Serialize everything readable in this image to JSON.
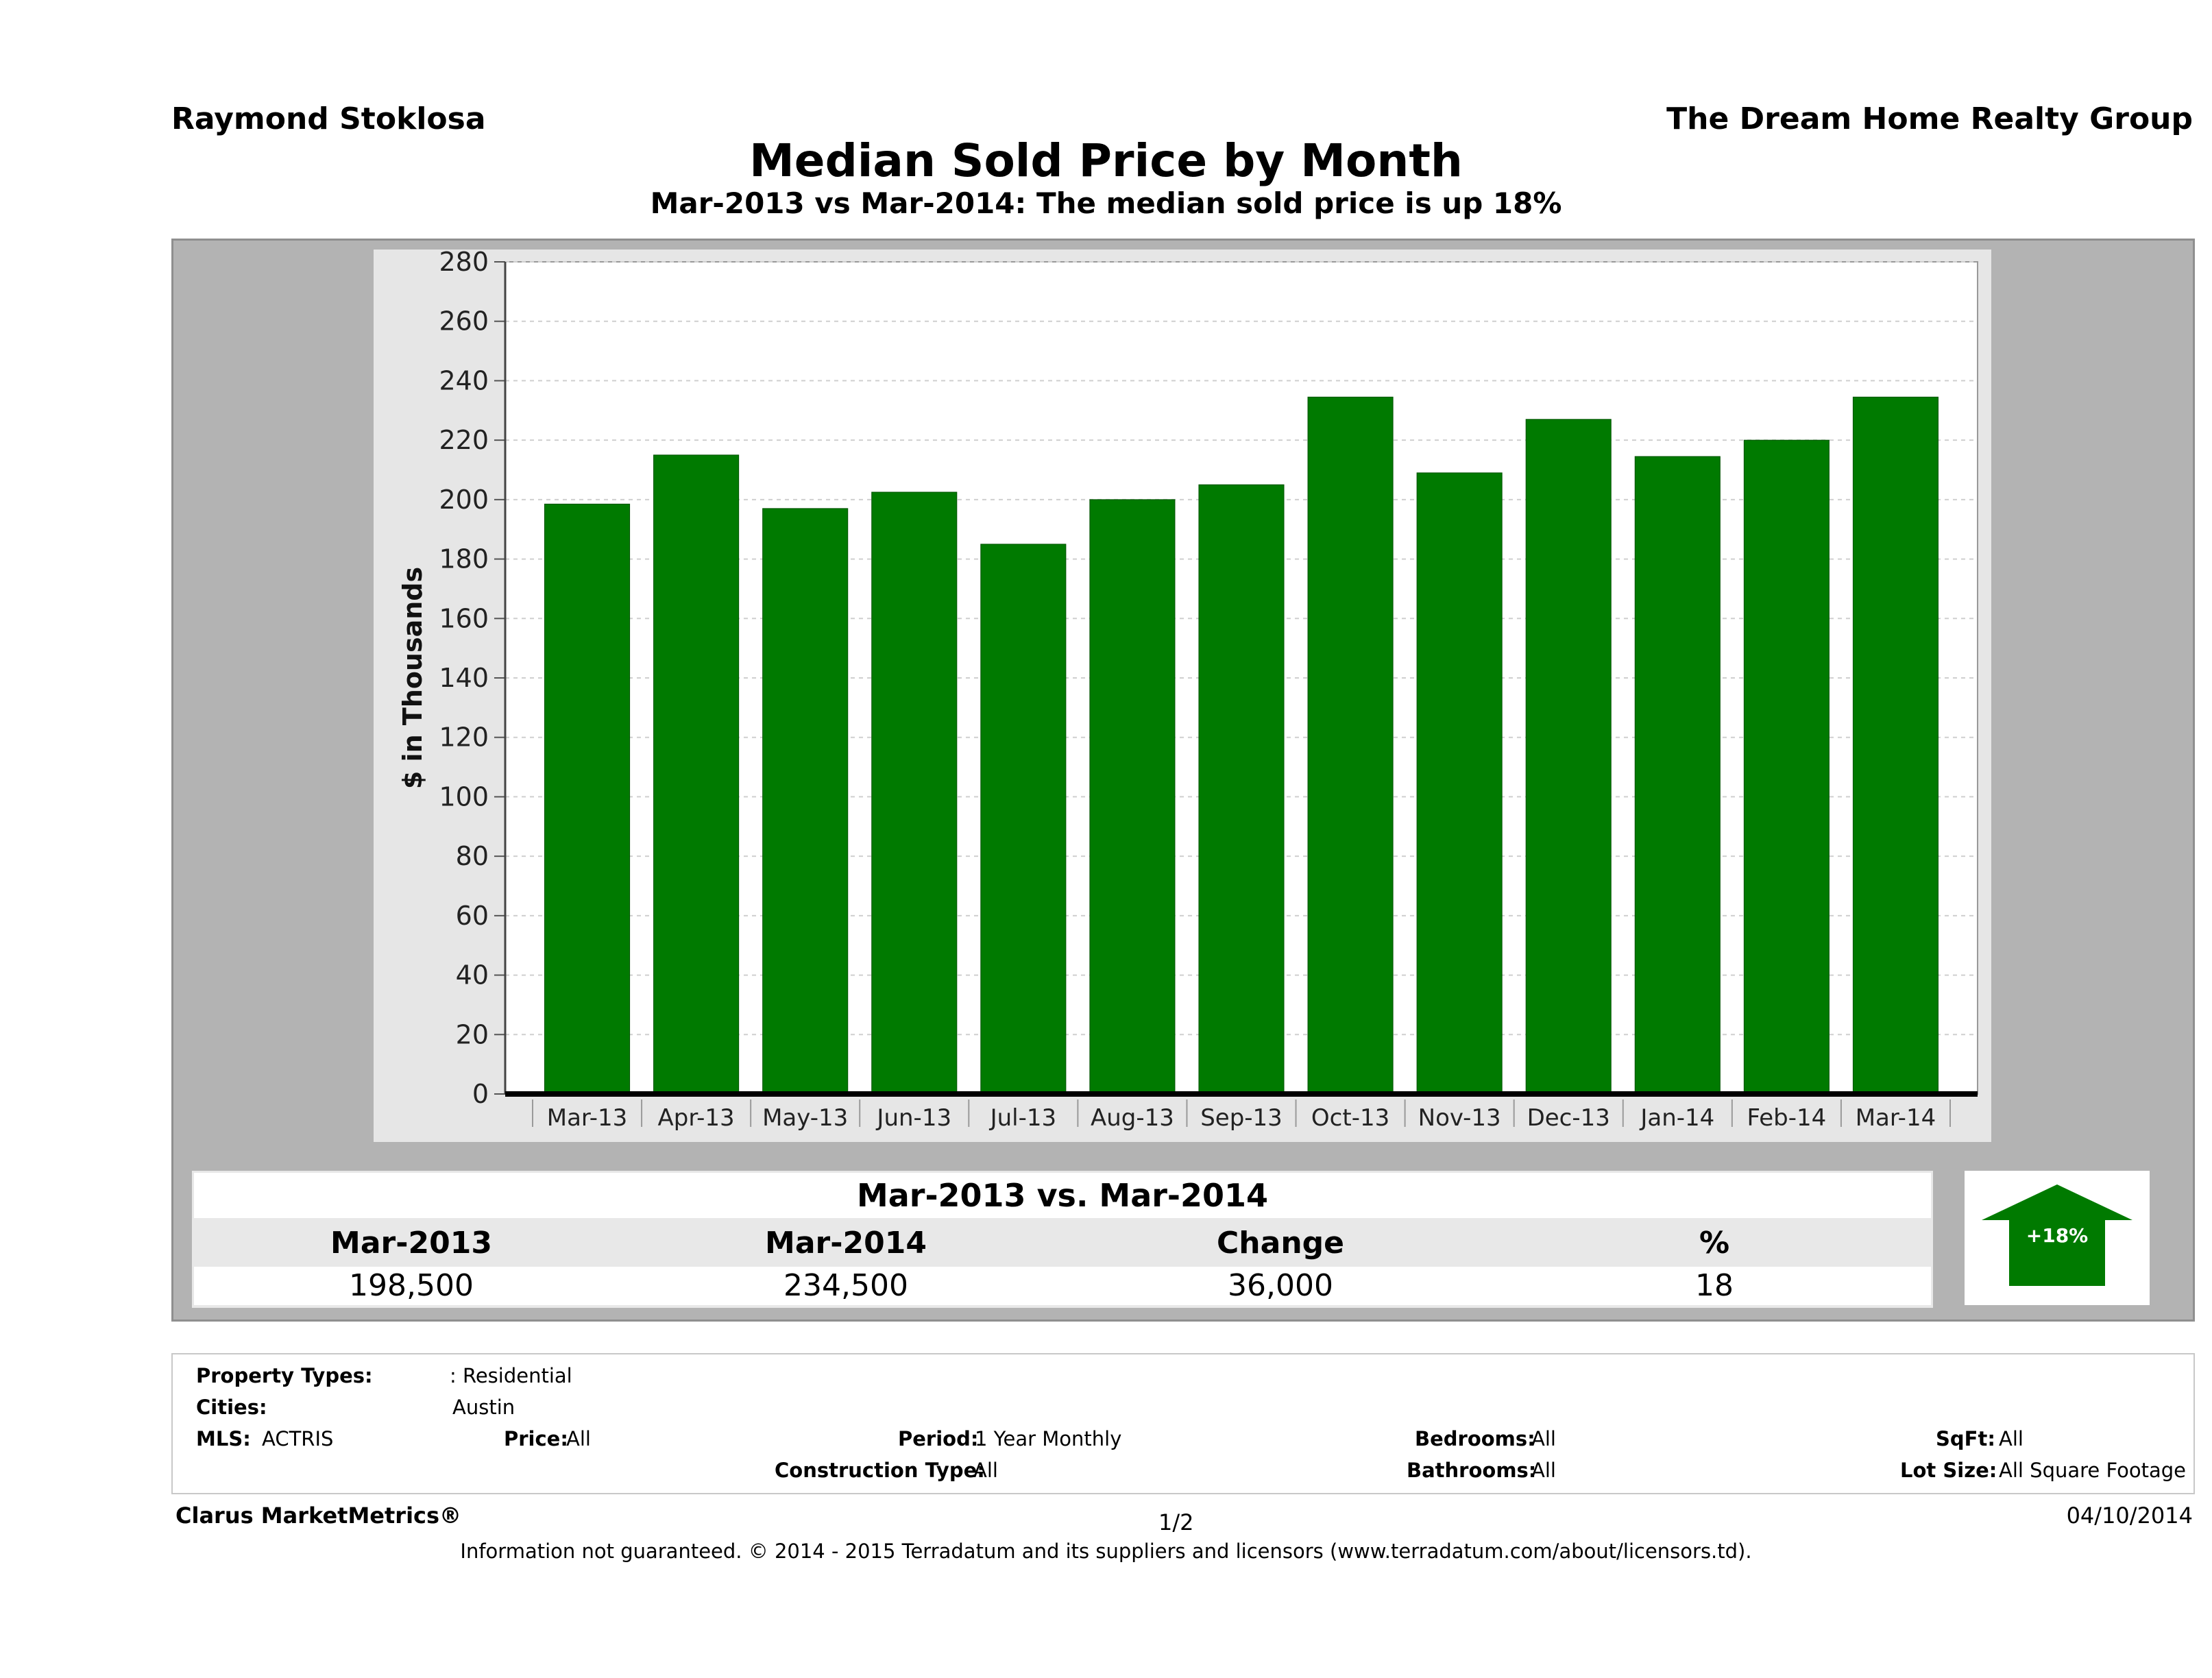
{
  "header": {
    "agent_name": "Raymond Stoklosa",
    "company_name": "The Dream Home Realty Group",
    "title": "Median Sold Price by Month",
    "subtitle": "Mar-2013 vs Mar-2014: The median sold price is up 18%"
  },
  "chart_data": {
    "type": "bar",
    "title": "Median Sold Price by Month",
    "ylabel": "$ in Thousands",
    "xlabel": "",
    "ylim": [
      0,
      280
    ],
    "yticks": [
      0,
      20,
      40,
      60,
      80,
      100,
      120,
      140,
      160,
      180,
      200,
      220,
      240,
      260,
      280
    ],
    "grid": true,
    "bar_color": "#007a00",
    "categories": [
      "Mar-13",
      "Apr-13",
      "May-13",
      "Jun-13",
      "Jul-13",
      "Aug-13",
      "Sep-13",
      "Oct-13",
      "Nov-13",
      "Dec-13",
      "Jan-14",
      "Feb-14",
      "Mar-14"
    ],
    "values": [
      198.5,
      215,
      197,
      202.5,
      185,
      200,
      205,
      234.5,
      209,
      227,
      214.5,
      220,
      234.5
    ]
  },
  "comparison": {
    "title": "Mar-2013 vs. Mar-2014",
    "headers": [
      "Mar-2013",
      "Mar-2014",
      "Change",
      "%"
    ],
    "values": [
      "198,500",
      "234,500",
      "36,000",
      "18"
    ],
    "badge_label": "+18%",
    "badge_color": "#007a00"
  },
  "details": {
    "property_types_label": "Property Types:",
    "property_types_value": ": Residential",
    "cities_label": "Cities:",
    "cities_value": "Austin",
    "mls_label": "MLS:",
    "mls_value": "ACTRIS",
    "price_label": "Price:",
    "price_value": "All",
    "period_label": "Period:",
    "period_value": "1 Year Monthly",
    "construction_label": "Construction Type:",
    "construction_value": "All",
    "bedrooms_label": "Bedrooms:",
    "bedrooms_value": "All",
    "bathrooms_label": "Bathrooms:",
    "bathrooms_value": "All",
    "sqft_label": "SqFt:",
    "sqft_value": "All",
    "lotsize_label": "Lot Size:",
    "lotsize_value": "All Square Footage"
  },
  "footer": {
    "brand": "Clarus MarketMetrics®",
    "page": "1/2",
    "date": "04/10/2014",
    "disclaimer": "Information not guaranteed. © 2014 - 2015 Terradatum and its suppliers and licensors (www.terradatum.com/about/licensors.td)."
  }
}
